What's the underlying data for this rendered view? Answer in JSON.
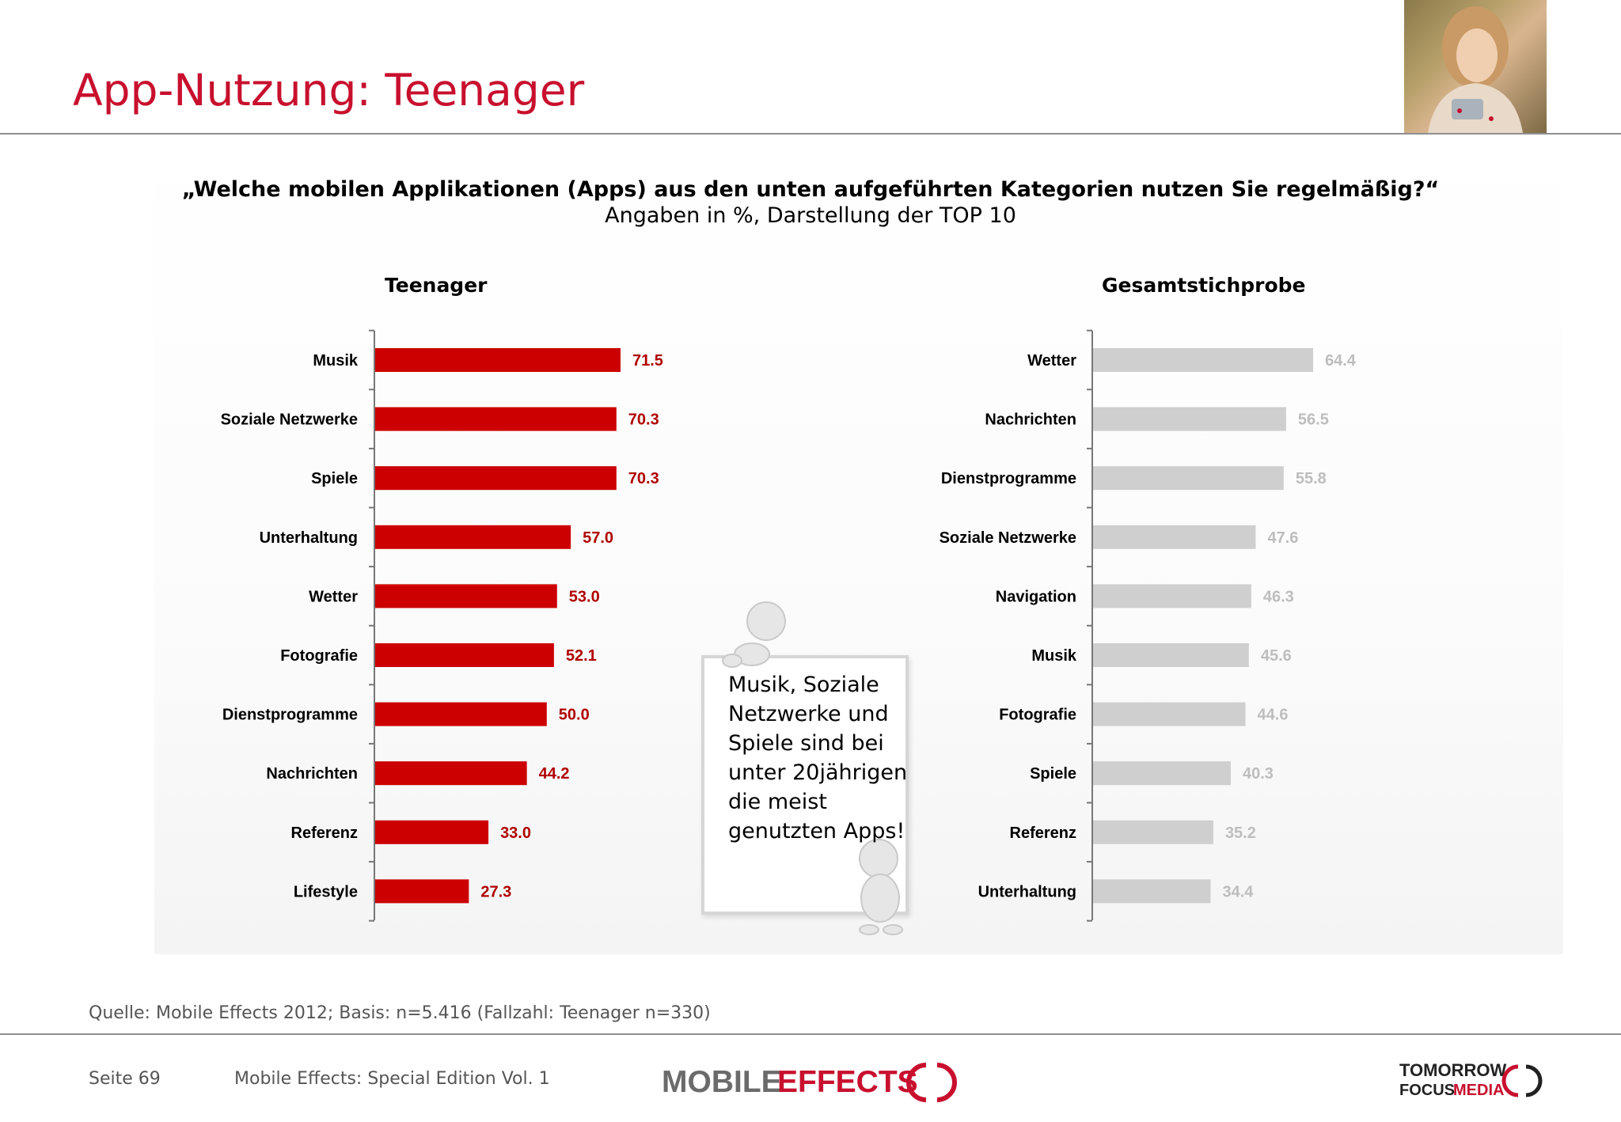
{
  "slide": {
    "title": "App-Nutzung: Teenager",
    "question": "„Welche mobilen Applikationen (Apps) aus den unten aufgeführten Kategorien nutzen Sie regelmäßig?“",
    "subtitle": "Angaben in %, Darstellung der TOP 10"
  },
  "callout": {
    "text": "Musik, Soziale Netzwerke und Spiele sind bei unter 20jährigen die meist genutzten Apps!"
  },
  "footer": {
    "source": "Quelle: Mobile Effects 2012; Basis: n=5.416 (Fallzahl: Teenager n=330)",
    "page": "Seite 69",
    "edition": "Mobile Effects: Special Edition Vol. 1",
    "logo_mobile": "MOBILE",
    "logo_effects": "EFFECTS",
    "logo_tfm_line1": "TOMORROW",
    "logo_tfm_line2a": "FOCUS",
    "logo_tfm_line2b": "MEDIA"
  },
  "colors": {
    "accent": "#c8102e",
    "teen_bar": "#cc0000",
    "total_bar": "#cfcfcf",
    "total_label": "#bdbdbd"
  },
  "chart_data": [
    {
      "type": "bar",
      "orientation": "horizontal",
      "title": "Teenager",
      "categories": [
        "Musik",
        "Soziale Netzwerke",
        "Spiele",
        "Unterhaltung",
        "Wetter",
        "Fotografie",
        "Dienstprogramme",
        "Nachrichten",
        "Referenz",
        "Lifestyle"
      ],
      "values": [
        71.5,
        70.3,
        70.3,
        57.0,
        53.0,
        52.1,
        50.0,
        44.2,
        33.0,
        27.3
      ],
      "value_labels": [
        "71.5",
        "70.3",
        "70.3",
        "57.0",
        "53.0",
        "52.1",
        "50.0",
        "44.2",
        "33.0",
        "27.3"
      ],
      "xlim": [
        0,
        100
      ],
      "color": "#cc0000",
      "label_color": "#b00000",
      "grid": false
    },
    {
      "type": "bar",
      "orientation": "horizontal",
      "title": "Gesamtstichprobe",
      "categories": [
        "Wetter",
        "Nachrichten",
        "Dienstprogramme",
        "Soziale Netzwerke",
        "Navigation",
        "Musik",
        "Fotografie",
        "Spiele",
        "Referenz",
        "Unterhaltung"
      ],
      "values": [
        64.4,
        56.5,
        55.8,
        47.6,
        46.3,
        45.6,
        44.6,
        40.3,
        35.2,
        34.4
      ],
      "value_labels": [
        "64.4",
        "56.5",
        "55.8",
        "47.6",
        "46.3",
        "45.6",
        "44.6",
        "40.3",
        "35.2",
        "34.4"
      ],
      "xlim": [
        0,
        100
      ],
      "color": "#cfcfcf",
      "label_color": "#bdbdbd",
      "grid": false
    }
  ]
}
